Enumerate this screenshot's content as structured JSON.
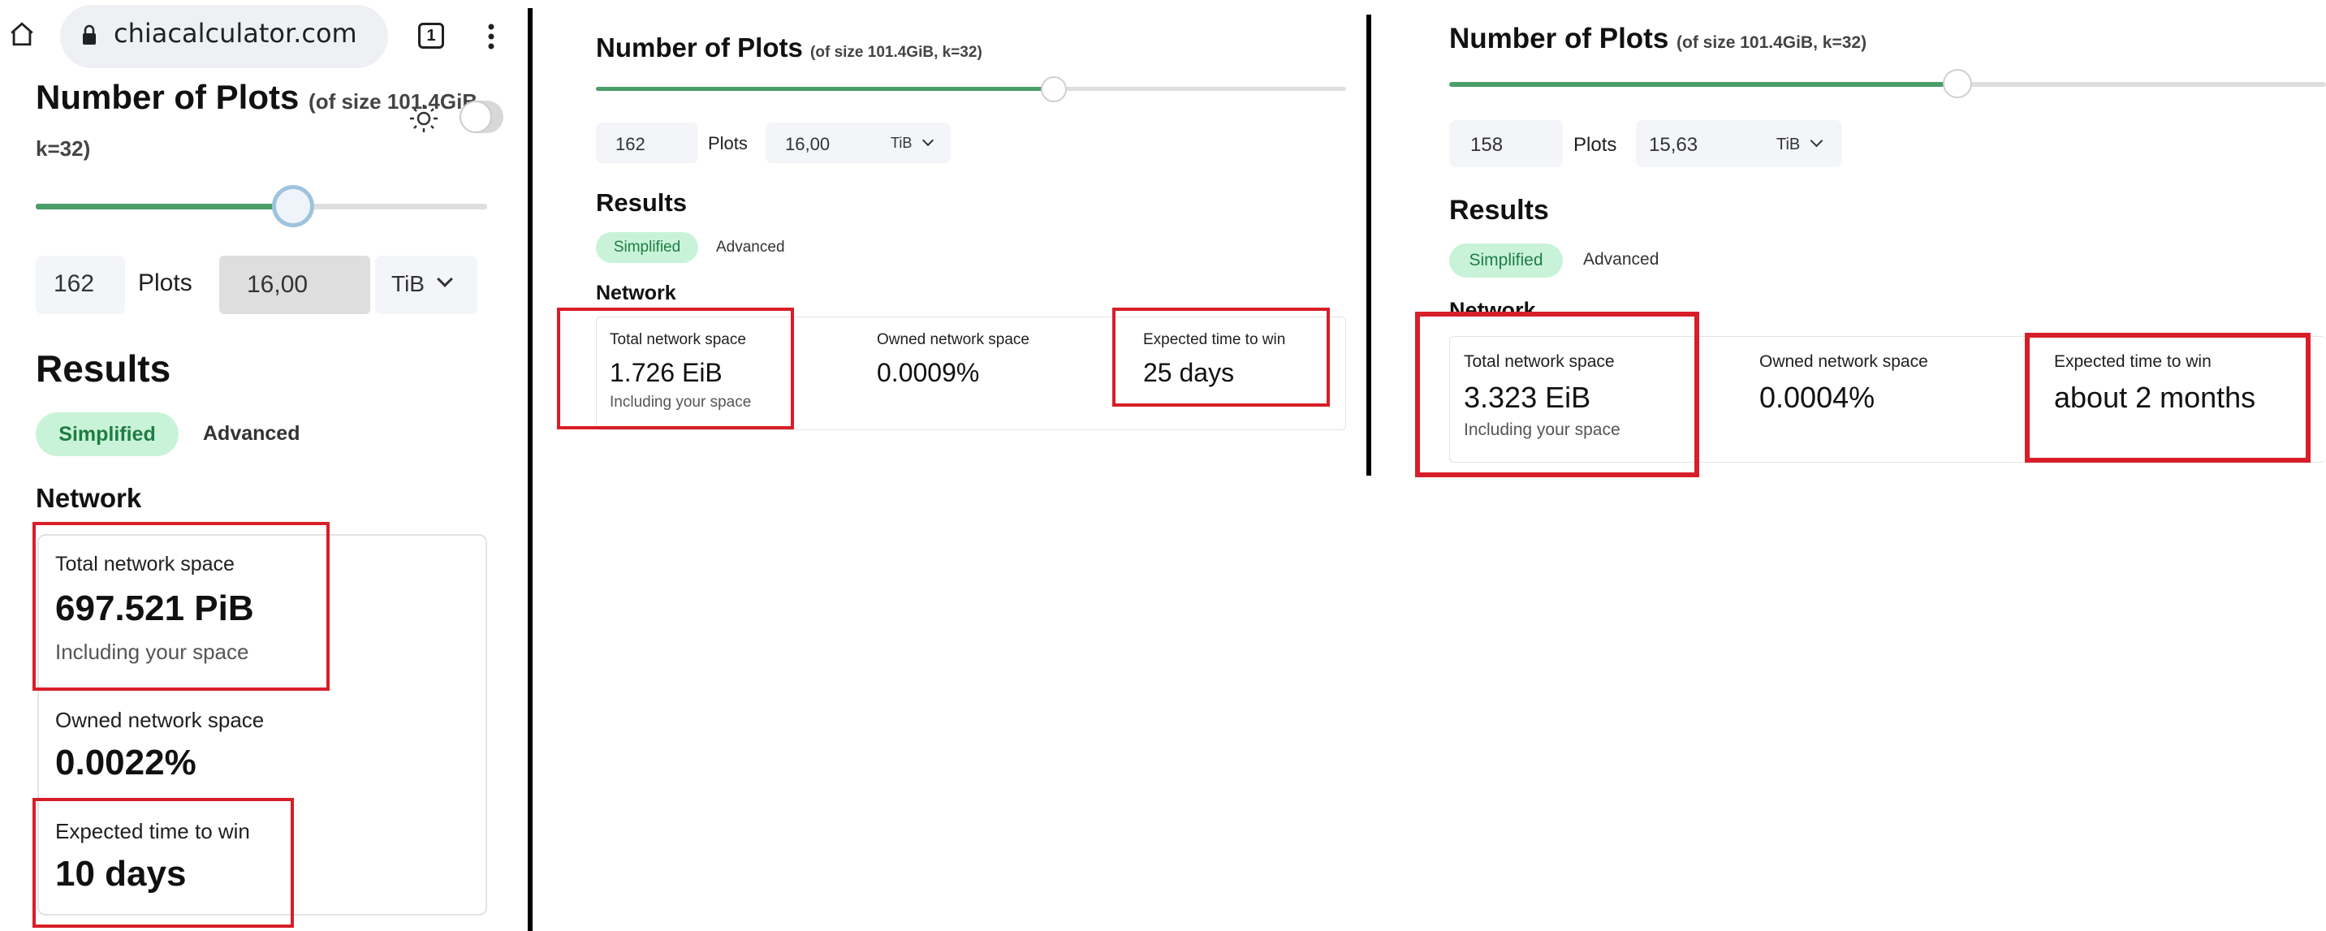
{
  "browser": {
    "url": "chiacalculator.com",
    "tab_count": "1"
  },
  "panel1": {
    "title": "Number of Plots",
    "title_suffix_a": "(of size 101.4GiB",
    "title_suffix_b": "k=32)",
    "slider_fraction": 0.57,
    "plots_value": "162",
    "plots_label": "Plots",
    "size_value": "16,00",
    "size_unit": "TiB",
    "results_title": "Results",
    "tab_simplified": "Simplified",
    "tab_advanced": "Advanced",
    "network_title": "Network",
    "total_label": "Total network space",
    "total_value": "697.521 PiB",
    "total_sub": "Including your space",
    "owned_label": "Owned network space",
    "owned_value": "0.0022%",
    "expected_label": "Expected time to win",
    "expected_value": "10 days"
  },
  "panel2": {
    "title": "Number of Plots",
    "title_suffix": "(of size 101.4GiB, k=32)",
    "slider_fraction": 0.61,
    "plots_value": "162",
    "plots_label": "Plots",
    "size_value": "16,00",
    "size_unit": "TiB",
    "results_title": "Results",
    "tab_simplified": "Simplified",
    "tab_advanced": "Advanced",
    "network_title": "Network",
    "total_label": "Total network space",
    "total_value": "1.726 EiB",
    "total_sub": "Including your space",
    "owned_label": "Owned network space",
    "owned_value": "0.0009%",
    "expected_label": "Expected time to win",
    "expected_value": "25 days"
  },
  "panel3": {
    "title": "Number of Plots",
    "title_suffix": "(of size 101.4GiB, k=32)",
    "slider_fraction": 0.58,
    "plots_value": "158",
    "plots_label": "Plots",
    "size_value": "15,63",
    "size_unit": "TiB",
    "results_title": "Results",
    "tab_simplified": "Simplified",
    "tab_advanced": "Advanced",
    "network_title": "Network",
    "total_label": "Total network space",
    "total_value": "3.323 EiB",
    "total_sub": "Including your space",
    "owned_label": "Owned network space",
    "owned_value": "0.0004%",
    "expected_label": "Expected time to win",
    "expected_value": "about 2 months"
  },
  "colors": {
    "accent_green": "#4a9e68",
    "pill_bg": "#c9f3d9",
    "highlight_red": "#d81e28"
  }
}
